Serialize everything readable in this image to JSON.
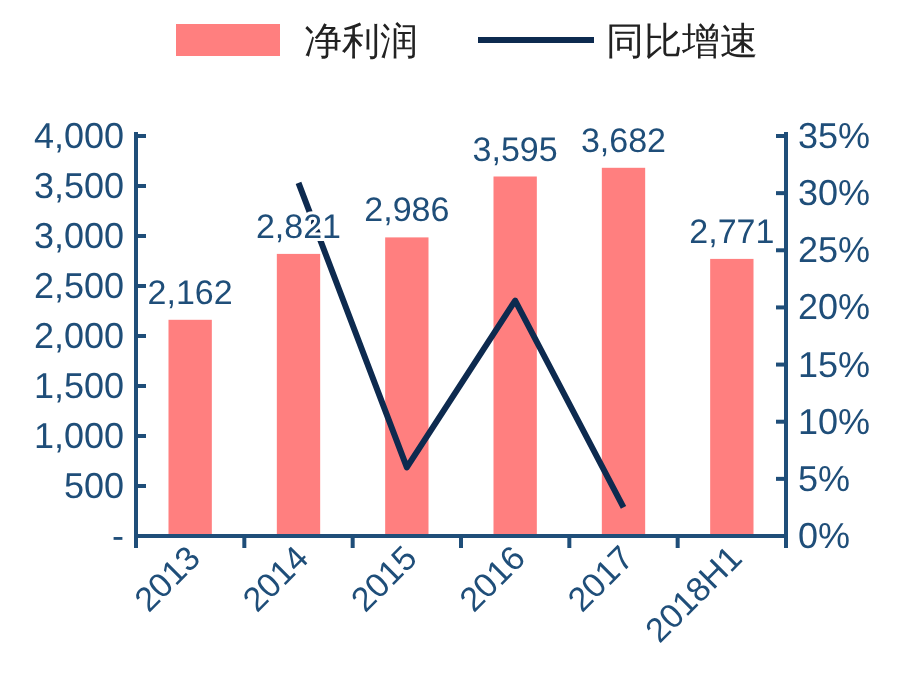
{
  "chart_data": {
    "type": "bar",
    "categories": [
      "2013",
      "2014",
      "2015",
      "2016",
      "2017",
      "2018H1"
    ],
    "series": [
      {
        "name": "净利润",
        "color": "#ff7f7f",
        "values": [
          2162,
          2821,
          2986,
          3595,
          3682,
          2771
        ],
        "value_labels": [
          "2,162",
          "2,821",
          "2,986",
          "3,595",
          "3,682",
          "2,771"
        ]
      },
      {
        "name": "同比增速",
        "type": "line",
        "axis": "y2",
        "color": "#0d2a4f",
        "values": [
          null,
          30.9,
          6.0,
          20.6,
          2.5,
          null
        ]
      }
    ],
    "ylim": [
      0,
      4000
    ],
    "yticks": [
      {
        "value": 0,
        "label": "-"
      },
      {
        "value": 500,
        "label": "500"
      },
      {
        "value": 1000,
        "label": "1,000"
      },
      {
        "value": 1500,
        "label": "1,500"
      },
      {
        "value": 2000,
        "label": "2,000"
      },
      {
        "value": 2500,
        "label": "2,500"
      },
      {
        "value": 3000,
        "label": "3,000"
      },
      {
        "value": 3500,
        "label": "3,500"
      },
      {
        "value": 4000,
        "label": "4,000"
      }
    ],
    "y2lim": [
      0,
      35
    ],
    "y2ticks": [
      {
        "value": 0,
        "label": "0%"
      },
      {
        "value": 5,
        "label": "5%"
      },
      {
        "value": 10,
        "label": "10%"
      },
      {
        "value": 15,
        "label": "15%"
      },
      {
        "value": 20,
        "label": "20%"
      },
      {
        "value": 25,
        "label": "25%"
      },
      {
        "value": 30,
        "label": "30%"
      },
      {
        "value": 35,
        "label": "35%"
      }
    ],
    "legend": "top"
  }
}
